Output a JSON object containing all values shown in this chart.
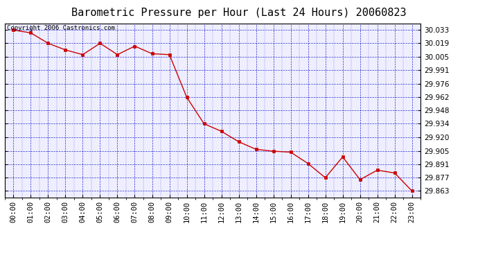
{
  "title": "Barometric Pressure per Hour (Last 24 Hours) 20060823",
  "copyright_text": "Copyright 2006 Castronics.com",
  "hours": [
    0,
    1,
    2,
    3,
    4,
    5,
    6,
    7,
    8,
    9,
    10,
    11,
    12,
    13,
    14,
    15,
    16,
    17,
    18,
    19,
    20,
    21,
    22,
    23
  ],
  "x_labels": [
    "00:00",
    "01:00",
    "02:00",
    "03:00",
    "04:00",
    "05:00",
    "06:00",
    "07:00",
    "08:00",
    "09:00",
    "10:00",
    "11:00",
    "12:00",
    "13:00",
    "14:00",
    "15:00",
    "16:00",
    "17:00",
    "18:00",
    "19:00",
    "20:00",
    "21:00",
    "22:00",
    "23:00"
  ],
  "pressure": [
    30.033,
    30.03,
    30.019,
    30.012,
    30.007,
    30.019,
    30.007,
    30.016,
    30.008,
    30.007,
    29.962,
    29.934,
    29.926,
    29.915,
    29.907,
    29.905,
    29.904,
    29.892,
    29.877,
    29.899,
    29.875,
    29.885,
    29.882,
    29.863
  ],
  "y_ticks": [
    29.863,
    29.877,
    29.891,
    29.905,
    29.92,
    29.934,
    29.948,
    29.962,
    29.976,
    29.991,
    30.005,
    30.019,
    30.033
  ],
  "y_min": 29.856,
  "y_max": 30.04,
  "line_color": "#cc0000",
  "marker_color": "#cc0000",
  "grid_color": "#0000bb",
  "bg_color": "#ffffff",
  "plot_bg_color": "#eeeeff",
  "title_fontsize": 11,
  "copyright_fontsize": 6.5,
  "tick_fontsize": 7.5,
  "fig_width": 6.9,
  "fig_height": 3.75,
  "dpi": 100
}
